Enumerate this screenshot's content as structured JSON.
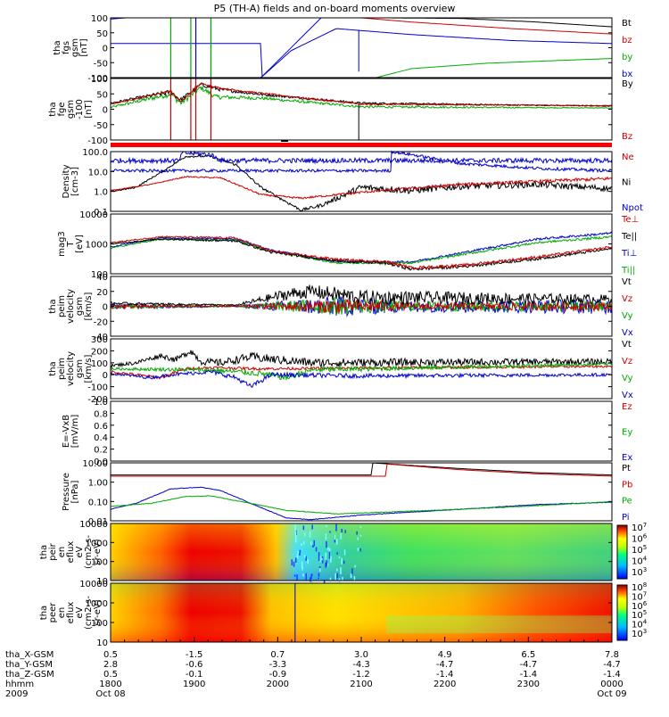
{
  "title": "P5 (TH-A) fields and on-board moments overview",
  "panels": [
    {
      "id": "fgs",
      "ylabel": [
        "tha",
        "fgs",
        "gsm",
        "[nT]"
      ],
      "ticks": [
        "100",
        "50",
        "0",
        "-50",
        "-100"
      ],
      "legend": [
        {
          "t": "Bt",
          "c": "#000000"
        },
        {
          "t": "bz",
          "c": "#cc0000"
        },
        {
          "t": "by",
          "c": "#00aa00"
        },
        {
          "t": "bx",
          "c": "#0000cc"
        }
      ]
    },
    {
      "id": "fge",
      "ylabel": [
        "tha",
        "fge",
        "gsm",
        "-100",
        "[nT]"
      ],
      "ticks": [
        "100",
        "50",
        "0",
        "-50",
        "-100"
      ],
      "legend": [
        {
          "t": "By",
          "c": "#000000"
        },
        {
          "t": "Bz",
          "c": "#cc0000"
        }
      ]
    },
    {
      "id": "density",
      "ylabel": [
        "Density",
        "[cm-3]"
      ],
      "ticks": [
        "100.0",
        "10.0",
        "1.0",
        "0.1"
      ],
      "legend": [
        {
          "t": "Ne",
          "c": "#cc0000"
        },
        {
          "t": "Ni",
          "c": "#000000"
        },
        {
          "t": "Npot",
          "c": "#0000cc"
        }
      ]
    },
    {
      "id": "temp",
      "ylabel": [
        "mag3",
        "T",
        "[eV]"
      ],
      "ticks": [
        "10000",
        "1000",
        "100"
      ],
      "legend": [
        {
          "t": "Te⊥",
          "c": "#cc0000"
        },
        {
          "t": "Te||",
          "c": "#000000"
        },
        {
          "t": "Ti⊥",
          "c": "#0000cc"
        },
        {
          "t": "Ti||",
          "c": "#00aa00"
        }
      ]
    },
    {
      "id": "veloc_e",
      "ylabel": [
        "tha",
        "peim",
        "velocity",
        "gsm",
        "[km/s]"
      ],
      "ticks": [
        "40",
        "20",
        "0",
        "-20",
        "-40"
      ],
      "legend": [
        {
          "t": "Vt",
          "c": "#000000"
        },
        {
          "t": "Vz",
          "c": "#cc0000"
        },
        {
          "t": "Vy",
          "c": "#00aa00"
        },
        {
          "t": "Vx",
          "c": "#0000cc"
        }
      ]
    },
    {
      "id": "veloc_i",
      "ylabel": [
        "tha",
        "peim",
        "velocity",
        "gsm",
        "[km/s]"
      ],
      "ticks": [
        "300",
        "200",
        "100",
        "0",
        "-100",
        "-200"
      ],
      "legend": [
        {
          "t": "Vt",
          "c": "#000000"
        },
        {
          "t": "Vz",
          "c": "#cc0000"
        },
        {
          "t": "Vy",
          "c": "#00aa00"
        },
        {
          "t": "Vx",
          "c": "#0000cc"
        }
      ]
    },
    {
      "id": "efield",
      "ylabel": [
        "E=-VxB",
        "[mV/m]"
      ],
      "ticks": [
        "1.0",
        "0.8",
        "0.6",
        "0.4",
        "0.2",
        "0.0"
      ],
      "legend": [
        {
          "t": "Ez",
          "c": "#cc0000"
        },
        {
          "t": "Ey",
          "c": "#00aa00"
        },
        {
          "t": "Ex",
          "c": "#0000cc"
        }
      ]
    },
    {
      "id": "pressure",
      "ylabel": [
        "Pressure",
        "[nPa]"
      ],
      "ticks": [
        "10.00",
        "1.00",
        "0.10",
        "0.01"
      ],
      "legend": [
        {
          "t": "Pt",
          "c": "#000000"
        },
        {
          "t": "Pb",
          "c": "#cc0000"
        },
        {
          "t": "Pe",
          "c": "#00aa00"
        },
        {
          "t": "Pi",
          "c": "#0000cc"
        }
      ]
    },
    {
      "id": "ion_spec",
      "ylabel": [
        "tha",
        "peir",
        "en",
        "eflux",
        "eV",
        "(cm2-s-",
        "sr-eV)"
      ],
      "ticks": [
        "10000",
        "1000",
        "100",
        "10"
      ],
      "cbar": [
        "10^7",
        "10^6",
        "10^5",
        "10^4",
        "10^3"
      ]
    },
    {
      "id": "ele_spec",
      "ylabel": [
        "tha",
        "peer",
        "en",
        "eflux",
        "eV",
        "(cm2-s-",
        "sr-eV)"
      ],
      "ticks": [
        "10000",
        "1000",
        "100",
        "10"
      ],
      "cbar": [
        "10^8",
        "10^7",
        "10^6",
        "10^5",
        "10^4",
        "10^3"
      ]
    }
  ],
  "xaxis": {
    "rowlabels": [
      "tha_X-GSM",
      "tha_Y-GSM",
      "tha_Z-GSM",
      "hhmm",
      "2009"
    ],
    "columns": [
      {
        "X": "0.5",
        "Y": "2.8",
        "Z": "0.5",
        "hhmm": "1800",
        "day": "Oct 08"
      },
      {
        "X": "-1.5",
        "Y": "-0.6",
        "Z": "-0.1",
        "hhmm": "1900",
        "day": ""
      },
      {
        "X": "0.7",
        "Y": "-3.3",
        "Z": "-0.9",
        "hhmm": "2000",
        "day": ""
      },
      {
        "X": "3.0",
        "Y": "-4.3",
        "Z": "-1.2",
        "hhmm": "2100",
        "day": ""
      },
      {
        "X": "4.9",
        "Y": "-4.7",
        "Z": "-1.4",
        "hhmm": "2200",
        "day": ""
      },
      {
        "X": "6.5",
        "Y": "-4.7",
        "Z": "-1.4",
        "hhmm": "2300",
        "day": ""
      },
      {
        "X": "7.8",
        "Y": "-4.7",
        "Z": "-1.4",
        "hhmm": "0000",
        "day": "Oct 09"
      }
    ]
  },
  "chart_data": {
    "type": "line",
    "title": "P5 (TH-A) fields and on-board moments overview",
    "x": [
      "1800",
      "1900",
      "2000",
      "2100",
      "2200",
      "2300",
      "0000"
    ],
    "xlabel": "hhmm",
    "series": [
      {
        "name": "Bt",
        "panel": "fgs",
        "values": [
          100,
          100,
          100,
          100,
          90,
          70,
          55
        ]
      },
      {
        "name": "bz",
        "panel": "fgs",
        "values": [
          100,
          100,
          100,
          85,
          75,
          65,
          50
        ]
      },
      {
        "name": "by",
        "panel": "fgs",
        "values": [
          -100,
          -100,
          -100,
          -100,
          -60,
          -45,
          -30
        ]
      },
      {
        "name": "bx",
        "panel": "fgs",
        "values": [
          -100,
          100,
          50,
          20,
          0,
          -5,
          -10
        ]
      },
      {
        "name": "Ne",
        "panel": "density",
        "values": [
          0.6,
          3,
          0.3,
          0.5,
          0.7,
          1.2,
          1.5
        ]
      },
      {
        "name": "Ni",
        "panel": "density",
        "values": [
          1,
          60,
          0.1,
          0.3,
          0.4,
          0.6,
          1.0
        ]
      },
      {
        "name": "Npot",
        "panel": "density",
        "values": [
          null,
          100,
          null,
          50,
          8,
          6,
          5
        ]
      },
      {
        "name": "Te⊥",
        "panel": "temp",
        "values": [
          400,
          600,
          60,
          60,
          100,
          300,
          700
        ]
      },
      {
        "name": "Te||",
        "panel": "temp",
        "values": [
          350,
          500,
          70,
          60,
          90,
          250,
          600
        ]
      },
      {
        "name": "Ti⊥",
        "panel": "temp",
        "values": [
          300,
          400,
          80,
          300,
          1500,
          2500,
          3000
        ]
      },
      {
        "name": "Ti||",
        "panel": "temp",
        "values": [
          250,
          350,
          70,
          250,
          1200,
          2000,
          2500
        ]
      },
      {
        "name": "Pt",
        "panel": "pressure",
        "values": [
          null,
          null,
          null,
          10,
          5,
          2.5,
          1.5
        ]
      },
      {
        "name": "Pb",
        "panel": "pressure",
        "values": [
          null,
          null,
          null,
          8,
          4,
          2,
          1.3
        ]
      },
      {
        "name": "Pe",
        "panel": "pressure",
        "values": [
          0.04,
          0.3,
          0.02,
          0.03,
          0.05,
          0.08,
          0.15
        ]
      },
      {
        "name": "Pi",
        "panel": "pressure",
        "values": [
          0.05,
          2.5,
          0.015,
          0.04,
          0.08,
          0.1,
          0.15
        ]
      }
    ]
  },
  "colors": {
    "black": "#000000",
    "red": "#cc0000",
    "green": "#00aa00",
    "blue": "#0000cc",
    "sep": "#ff0000"
  }
}
